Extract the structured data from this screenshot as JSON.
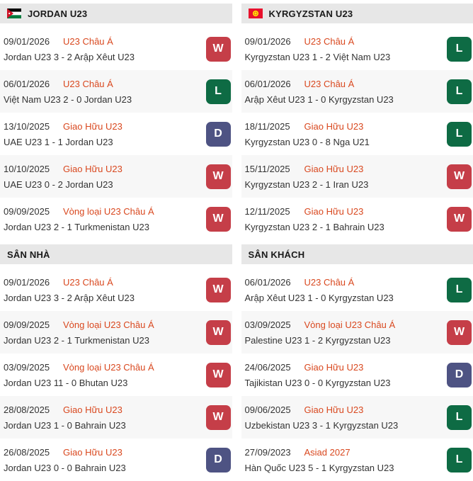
{
  "colors": {
    "win_badge": "#c53e48",
    "loss_badge": "#0e6b44",
    "draw_badge": "#4e5383",
    "competition_link": "#d9481f",
    "header_bg": "#e7e7e7",
    "alt_row_bg": "#f7f7f7"
  },
  "columns": [
    {
      "team": "JORDAN U23",
      "flag": "jordan",
      "sections": [
        {
          "title": "",
          "matches": [
            {
              "date": "09/01/2026",
              "competition": "U23 Châu Á",
              "result": "Jordan U23 3 - 2 Arập Xêut U23",
              "outcome": "W"
            },
            {
              "date": "06/01/2026",
              "competition": "U23 Châu Á",
              "result": "Việt Nam U23 2 - 0 Jordan U23",
              "outcome": "L"
            },
            {
              "date": "13/10/2025",
              "competition": "Giao Hữu U23",
              "result": "UAE U23 1 - 1 Jordan U23",
              "outcome": "D"
            },
            {
              "date": "10/10/2025",
              "competition": "Giao Hữu U23",
              "result": "UAE U23 0 - 2 Jordan U23",
              "outcome": "W"
            },
            {
              "date": "09/09/2025",
              "competition": "Vòng loại U23 Châu Á",
              "result": "Jordan U23 2 - 1 Turkmenistan U23",
              "outcome": "W"
            }
          ]
        },
        {
          "title": "SÂN NHÀ",
          "matches": [
            {
              "date": "09/01/2026",
              "competition": "U23 Châu Á",
              "result": "Jordan U23 3 - 2 Arập Xêut U23",
              "outcome": "W"
            },
            {
              "date": "09/09/2025",
              "competition": "Vòng loại U23 Châu Á",
              "result": "Jordan U23 2 - 1 Turkmenistan U23",
              "outcome": "W"
            },
            {
              "date": "03/09/2025",
              "competition": "Vòng loại U23 Châu Á",
              "result": "Jordan U23 11 - 0 Bhutan U23",
              "outcome": "W"
            },
            {
              "date": "28/08/2025",
              "competition": "Giao Hữu U23",
              "result": "Jordan U23 1 - 0 Bahrain U23",
              "outcome": "W"
            },
            {
              "date": "26/08/2025",
              "competition": "Giao Hữu U23",
              "result": "Jordan U23 0 - 0 Bahrain U23",
              "outcome": "D"
            }
          ]
        }
      ]
    },
    {
      "team": "KYRGYZSTAN U23",
      "flag": "kyrgyzstan",
      "sections": [
        {
          "title": "",
          "matches": [
            {
              "date": "09/01/2026",
              "competition": "U23 Châu Á",
              "result": "Kyrgyzstan U23 1 - 2 Việt Nam U23",
              "outcome": "L"
            },
            {
              "date": "06/01/2026",
              "competition": "U23 Châu Á",
              "result": "Arập Xêut U23 1 - 0 Kyrgyzstan U23",
              "outcome": "L"
            },
            {
              "date": "18/11/2025",
              "competition": "Giao Hữu U23",
              "result": "Kyrgyzstan U23 0 - 8 Nga U21",
              "outcome": "L"
            },
            {
              "date": "15/11/2025",
              "competition": "Giao Hữu U23",
              "result": "Kyrgyzstan U23 2 - 1 Iran U23",
              "outcome": "W"
            },
            {
              "date": "12/11/2025",
              "competition": "Giao Hữu U23",
              "result": "Kyrgyzstan U23 2 - 1 Bahrain U23",
              "outcome": "W"
            }
          ]
        },
        {
          "title": "SÂN KHÁCH",
          "matches": [
            {
              "date": "06/01/2026",
              "competition": "U23 Châu Á",
              "result": "Arập Xêut U23 1 - 0 Kyrgyzstan U23",
              "outcome": "L"
            },
            {
              "date": "03/09/2025",
              "competition": "Vòng loại U23 Châu Á",
              "result": "Palestine U23 1 - 2 Kyrgyzstan U23",
              "outcome": "W"
            },
            {
              "date": "24/06/2025",
              "competition": "Giao Hữu U23",
              "result": "Tajikistan U23 0 - 0 Kyrgyzstan U23",
              "outcome": "D"
            },
            {
              "date": "09/06/2025",
              "competition": "Giao Hữu U23",
              "result": "Uzbekistan U23 3 - 1 Kyrgyzstan U23",
              "outcome": "L"
            },
            {
              "date": "27/09/2023",
              "competition": "Asiad 2027",
              "result": "Hàn Quốc U23 5 - 1 Kyrgyzstan U23",
              "outcome": "L"
            }
          ]
        }
      ]
    }
  ]
}
